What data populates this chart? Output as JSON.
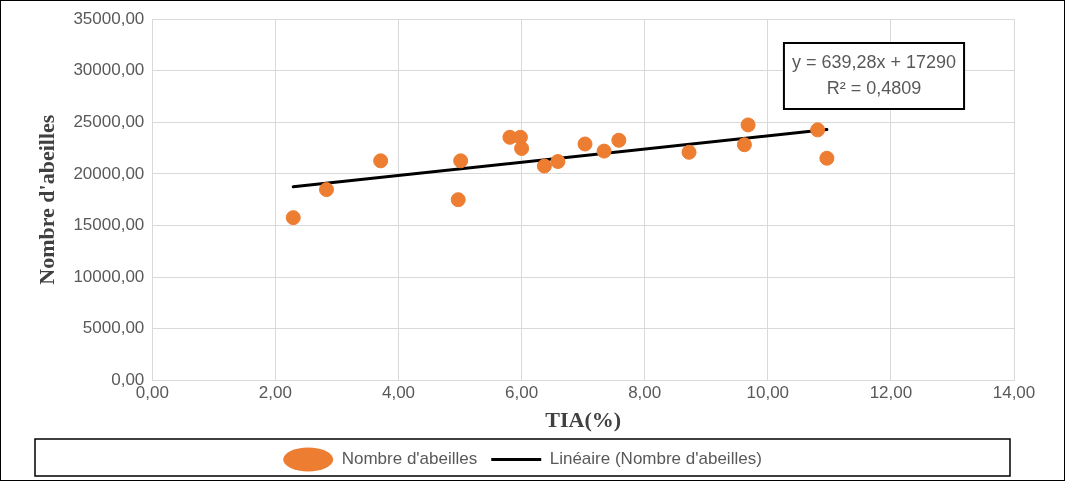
{
  "chart_data": {
    "type": "scatter",
    "xlabel": "TIA(%)",
    "ylabel": "Nombre d'abeilles",
    "x": [
      2.29,
      2.83,
      3.71,
      5.01,
      4.97,
      5.81,
      5.98,
      6.0,
      6.37,
      6.59,
      7.03,
      7.34,
      7.58,
      8.72,
      9.62,
      9.68,
      10.81,
      10.96
    ],
    "series": [
      {
        "name": "Nombre d'abeilles",
        "color": "#ed7d31",
        "values": [
          15760,
          18480,
          21270,
          21270,
          17500,
          23550,
          23550,
          22470,
          20760,
          21200,
          22900,
          22210,
          23260,
          22100,
          22830,
          24750,
          24270,
          21520
        ]
      },
      {
        "name": "Linéaire (Nombre d'abeilles)",
        "type": "line",
        "color": "#000000",
        "x": [
          2.29,
          10.96
        ],
        "values": [
          18754,
          24297
        ],
        "marker": "none"
      }
    ],
    "xlim": [
      0,
      14
    ],
    "xticks": [
      {
        "value": 0,
        "label": "0,00"
      },
      {
        "value": 2,
        "label": "2,00"
      },
      {
        "value": 4,
        "label": "4,00"
      },
      {
        "value": 6,
        "label": "6,00"
      },
      {
        "value": 8,
        "label": "8,00"
      },
      {
        "value": 10,
        "label": "10,00"
      },
      {
        "value": 12,
        "label": "12,00"
      },
      {
        "value": 14,
        "label": "14,00"
      }
    ],
    "ylim": [
      0,
      35000
    ],
    "yticks": [
      {
        "value": 0,
        "label": "0,00"
      },
      {
        "value": 5000,
        "label": "5000,00"
      },
      {
        "value": 10000,
        "label": "10000,00"
      },
      {
        "value": 15000,
        "label": "15000,00"
      },
      {
        "value": 20000,
        "label": "20000,00"
      },
      {
        "value": 25000,
        "label": "25000,00"
      },
      {
        "value": 30000,
        "label": "30000,00"
      },
      {
        "value": 35000,
        "label": "35000,00"
      }
    ],
    "annotations": [
      "y = 639,28x + 17290",
      "R² = 0,4809"
    ],
    "grid": true,
    "legend": "bottom",
    "marker": "circle"
  }
}
